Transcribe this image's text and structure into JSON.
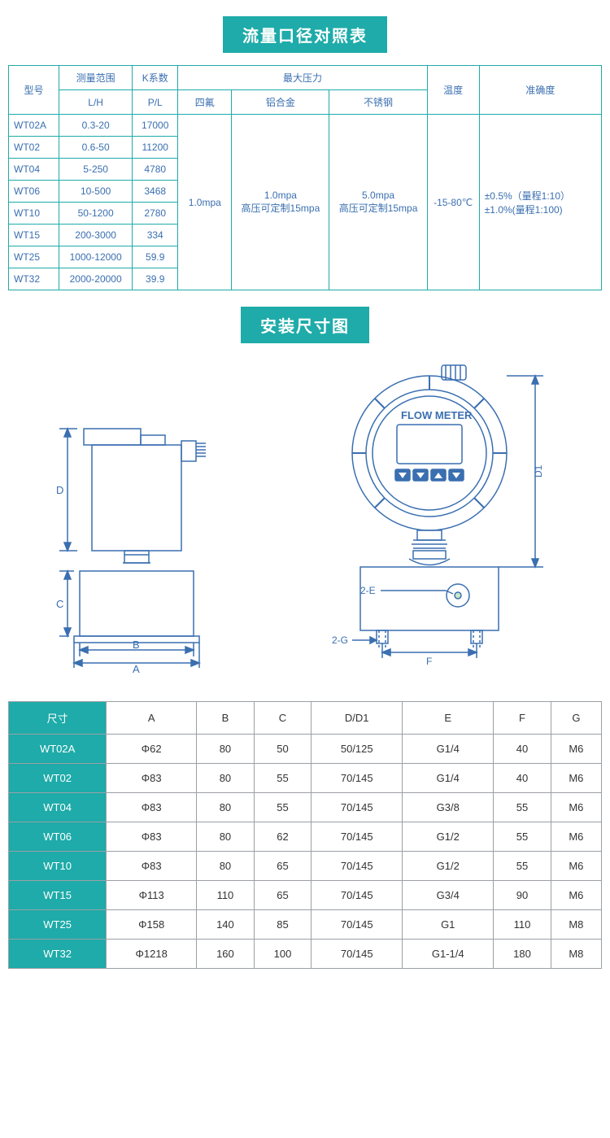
{
  "titles": {
    "table1": "流量口径对照表",
    "diagram": "安装尺寸图"
  },
  "colors": {
    "accent": "#1eaba9",
    "border1": "#1eaba9",
    "text_blue": "#3a6fb0",
    "border2": "#9aa0a6",
    "diagram_stroke": "#3a6fb0"
  },
  "table1": {
    "head": {
      "model": "型号",
      "range": "测量范围",
      "range_unit": "L/H",
      "k": "K系数",
      "k_unit": "P/L",
      "maxp": "最大压力",
      "siflon": "四氟",
      "alloy": "铝合金",
      "steel": "不锈钢",
      "temp": "温度",
      "acc": "准确度"
    },
    "rows": [
      {
        "model": "WT02A",
        "range": "0.3-20",
        "k": "17000"
      },
      {
        "model": "WT02",
        "range": "0.6-50",
        "k": "11200"
      },
      {
        "model": "WT04",
        "range": "5-250",
        "k": "4780"
      },
      {
        "model": "WT06",
        "range": "10-500",
        "k": "3468"
      },
      {
        "model": "WT10",
        "range": "50-1200",
        "k": "2780"
      },
      {
        "model": "WT15",
        "range": "200-3000",
        "k": "334"
      },
      {
        "model": "WT25",
        "range": "1000-12000",
        "k": "59.9"
      },
      {
        "model": "WT32",
        "range": "2000-20000",
        "k": "39.9"
      }
    ],
    "merged": {
      "siflon": "1.0mpa",
      "alloy_l1": "1.0mpa",
      "alloy_l2": "高压可定制15mpa",
      "steel_l1": "5.0mpa",
      "steel_l2": "高压可定制15mpa",
      "temp": "-15-80℃",
      "acc_l1": "±0.5%（量程1:10）",
      "acc_l2": "±1.0%(量程1:100)"
    }
  },
  "diagram": {
    "flowmeter_label": "FLOW METER",
    "labels": {
      "A": "A",
      "B": "B",
      "C": "C",
      "D": "D",
      "D1": "D1",
      "E": "2-E",
      "F": "F",
      "G": "2-G"
    }
  },
  "table2": {
    "head": {
      "dim": "尺寸",
      "A": "A",
      "B": "B",
      "C": "C",
      "D": "D/D1",
      "E": "E",
      "F": "F",
      "G": "G"
    },
    "rows": [
      {
        "m": "WT02A",
        "A": "Φ62",
        "B": "80",
        "C": "50",
        "D": "50/125",
        "E": "G1/4",
        "F": "40",
        "G": "M6"
      },
      {
        "m": "WT02",
        "A": "Φ83",
        "B": "80",
        "C": "55",
        "D": "70/145",
        "E": "G1/4",
        "F": "40",
        "G": "M6"
      },
      {
        "m": "WT04",
        "A": "Φ83",
        "B": "80",
        "C": "55",
        "D": "70/145",
        "E": "G3/8",
        "F": "55",
        "G": "M6"
      },
      {
        "m": "WT06",
        "A": "Φ83",
        "B": "80",
        "C": "62",
        "D": "70/145",
        "E": "G1/2",
        "F": "55",
        "G": "M6"
      },
      {
        "m": "WT10",
        "A": "Φ83",
        "B": "80",
        "C": "65",
        "D": "70/145",
        "E": "G1/2",
        "F": "55",
        "G": "M6"
      },
      {
        "m": "WT15",
        "A": "Φ113",
        "B": "110",
        "C": "65",
        "D": "70/145",
        "E": "G3/4",
        "F": "90",
        "G": "M6"
      },
      {
        "m": "WT25",
        "A": "Φ158",
        "B": "140",
        "C": "85",
        "D": "70/145",
        "E": "G1",
        "F": "110",
        "G": "M8"
      },
      {
        "m": "WT32",
        "A": "Φ1218",
        "B": "160",
        "C": "100",
        "D": "70/145",
        "E": "G1-1/4",
        "F": "180",
        "G": "M8"
      }
    ]
  }
}
